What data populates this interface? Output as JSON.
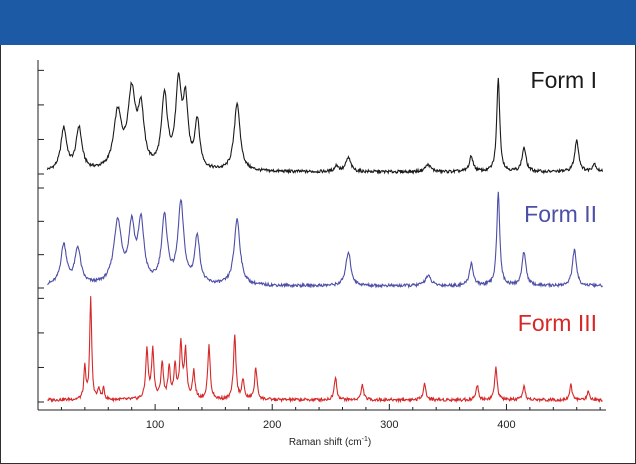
{
  "chart_data": {
    "type": "line",
    "title": "",
    "xlabel": "Raman shift (cm",
    "xlabel_sup": "-1",
    "xlabel_close": ")",
    "xlim": [
      0,
      485
    ],
    "x_ticks": [
      100,
      200,
      300,
      400
    ],
    "x_tick_labels": [
      "100",
      "200",
      "300",
      "400"
    ],
    "y_axis_labels_visible": false,
    "grid": false,
    "legend_placement": "inline-right",
    "colors": {
      "header": "#1c5aa6",
      "form1": "#1a1a1a",
      "form2": "#4d4ea6",
      "form3": "#d62828"
    },
    "series": [
      {
        "name": "Form I",
        "color": "#1a1a1a",
        "peaks": [
          [
            22,
            0.42,
            6
          ],
          [
            35,
            0.42,
            6
          ],
          [
            68,
            0.55,
            8
          ],
          [
            80,
            0.75,
            8
          ],
          [
            88,
            0.55,
            6
          ],
          [
            108,
            0.72,
            6
          ],
          [
            120,
            0.82,
            6
          ],
          [
            126,
            0.62,
            5
          ],
          [
            136,
            0.48,
            5
          ],
          [
            170,
            0.68,
            6
          ],
          [
            255,
            0.06,
            4
          ],
          [
            265,
            0.14,
            5
          ],
          [
            333,
            0.07,
            6
          ],
          [
            370,
            0.15,
            4
          ],
          [
            393,
            0.95,
            3
          ],
          [
            415,
            0.24,
            4
          ],
          [
            460,
            0.32,
            4
          ],
          [
            475,
            0.08,
            4
          ]
        ]
      },
      {
        "name": "Form II",
        "color": "#4d4ea6",
        "peaks": [
          [
            22,
            0.4,
            6
          ],
          [
            34,
            0.36,
            6
          ],
          [
            68,
            0.62,
            8
          ],
          [
            80,
            0.55,
            6
          ],
          [
            88,
            0.6,
            6
          ],
          [
            108,
            0.66,
            6
          ],
          [
            122,
            0.8,
            6
          ],
          [
            136,
            0.48,
            5
          ],
          [
            170,
            0.66,
            6
          ],
          [
            265,
            0.34,
            5
          ],
          [
            333,
            0.1,
            6
          ],
          [
            370,
            0.22,
            4
          ],
          [
            393,
            0.95,
            3
          ],
          [
            415,
            0.34,
            4
          ],
          [
            458,
            0.36,
            4
          ]
        ]
      },
      {
        "name": "Form III",
        "color": "#d62828",
        "peaks": [
          [
            40,
            0.3,
            2
          ],
          [
            45,
            0.95,
            2
          ],
          [
            52,
            0.1,
            2
          ],
          [
            56,
            0.1,
            2
          ],
          [
            93,
            0.46,
            2.5
          ],
          [
            98,
            0.46,
            2.5
          ],
          [
            106,
            0.34,
            2.5
          ],
          [
            112,
            0.28,
            2.5
          ],
          [
            117,
            0.3,
            2.5
          ],
          [
            122,
            0.5,
            2.5
          ],
          [
            126,
            0.45,
            2.5
          ],
          [
            133,
            0.26,
            2.5
          ],
          [
            146,
            0.5,
            2.5
          ],
          [
            168,
            0.6,
            2.5
          ],
          [
            175,
            0.18,
            2.5
          ],
          [
            186,
            0.3,
            2.5
          ],
          [
            254,
            0.22,
            2.5
          ],
          [
            277,
            0.14,
            2.5
          ],
          [
            330,
            0.16,
            2.5
          ],
          [
            375,
            0.14,
            2.5
          ],
          [
            391,
            0.3,
            2.5
          ],
          [
            415,
            0.12,
            2.5
          ],
          [
            455,
            0.14,
            2.5
          ],
          [
            470,
            0.08,
            2.5
          ]
        ]
      }
    ]
  }
}
